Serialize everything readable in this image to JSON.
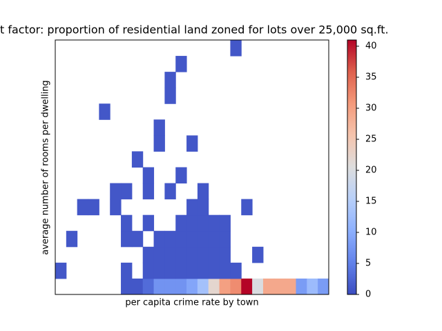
{
  "chart_data": {
    "type": "heatmap",
    "title": "t factor: proportion of residential land zoned for lots over 25,000 sq.ft.",
    "x_label": "per capita crime rate by town",
    "y_label": "average number of rooms per dwelling",
    "colormap": "coolwarm",
    "clim": [
      0,
      41
    ],
    "cticks": [
      0,
      5,
      10,
      15,
      20,
      25,
      30,
      35,
      40
    ],
    "z": [
      [
        null,
        null,
        null,
        null,
        null,
        null,
        1,
        1,
        3,
        7,
        7,
        7,
        9,
        13,
        22,
        30,
        32,
        41,
        20,
        29,
        29,
        29,
        8,
        12,
        8
      ],
      [
        1,
        null,
        null,
        null,
        null,
        null,
        1,
        null,
        1,
        1,
        1,
        1,
        1,
        1,
        1,
        1,
        1,
        null,
        null,
        null,
        null,
        null,
        null,
        null,
        null
      ],
      [
        null,
        null,
        null,
        null,
        null,
        null,
        null,
        null,
        1,
        1,
        1,
        1,
        1,
        1,
        1,
        1,
        null,
        null,
        1,
        null,
        null,
        null,
        null,
        null,
        null
      ],
      [
        null,
        1,
        null,
        null,
        null,
        null,
        1,
        1,
        null,
        1,
        1,
        1,
        1,
        1,
        1,
        1,
        null,
        null,
        null,
        null,
        null,
        null,
        null,
        null,
        null
      ],
      [
        null,
        null,
        null,
        null,
        null,
        null,
        1,
        null,
        1,
        null,
        null,
        1,
        1,
        1,
        1,
        1,
        null,
        null,
        null,
        null,
        null,
        null,
        null,
        null,
        null
      ],
      [
        null,
        null,
        1,
        1,
        null,
        1,
        null,
        null,
        null,
        null,
        null,
        null,
        1,
        1,
        null,
        null,
        null,
        1,
        null,
        null,
        null,
        null,
        null,
        null,
        null
      ],
      [
        null,
        null,
        null,
        null,
        null,
        1,
        1,
        null,
        1,
        null,
        1,
        null,
        null,
        1,
        null,
        null,
        null,
        null,
        null,
        null,
        null,
        null,
        null,
        null,
        null
      ],
      [
        null,
        null,
        null,
        null,
        null,
        null,
        null,
        null,
        1,
        null,
        null,
        1,
        null,
        null,
        null,
        null,
        null,
        null,
        null,
        null,
        null,
        null,
        null,
        null,
        null
      ],
      [
        null,
        null,
        null,
        null,
        null,
        null,
        null,
        1,
        null,
        null,
        null,
        null,
        null,
        null,
        null,
        null,
        null,
        null,
        null,
        null,
        null,
        null,
        null,
        null,
        null
      ],
      [
        null,
        null,
        null,
        null,
        null,
        null,
        null,
        null,
        null,
        1,
        null,
        null,
        1,
        null,
        null,
        null,
        null,
        null,
        null,
        null,
        null,
        null,
        null,
        null,
        null
      ],
      [
        null,
        null,
        null,
        null,
        null,
        null,
        null,
        null,
        null,
        1,
        null,
        null,
        null,
        null,
        null,
        null,
        null,
        null,
        null,
        null,
        null,
        null,
        null,
        null,
        null
      ],
      [
        null,
        null,
        null,
        null,
        1,
        null,
        null,
        null,
        null,
        null,
        null,
        null,
        null,
        null,
        null,
        null,
        null,
        null,
        null,
        null,
        null,
        null,
        null,
        null,
        null
      ],
      [
        null,
        null,
        null,
        null,
        null,
        null,
        null,
        null,
        null,
        null,
        1,
        null,
        null,
        null,
        null,
        null,
        null,
        null,
        null,
        null,
        null,
        null,
        null,
        null,
        null
      ],
      [
        null,
        null,
        null,
        null,
        null,
        null,
        null,
        null,
        null,
        null,
        1,
        null,
        null,
        null,
        null,
        null,
        null,
        null,
        null,
        null,
        null,
        null,
        null,
        null,
        null
      ],
      [
        null,
        null,
        null,
        null,
        null,
        null,
        null,
        null,
        null,
        null,
        null,
        1,
        null,
        null,
        null,
        null,
        null,
        null,
        null,
        null,
        null,
        null,
        null,
        null,
        null
      ],
      [
        null,
        null,
        null,
        null,
        null,
        null,
        null,
        null,
        null,
        null,
        null,
        null,
        null,
        null,
        null,
        null,
        1,
        null,
        null,
        null,
        null,
        null,
        null,
        null,
        null
      ]
    ]
  }
}
